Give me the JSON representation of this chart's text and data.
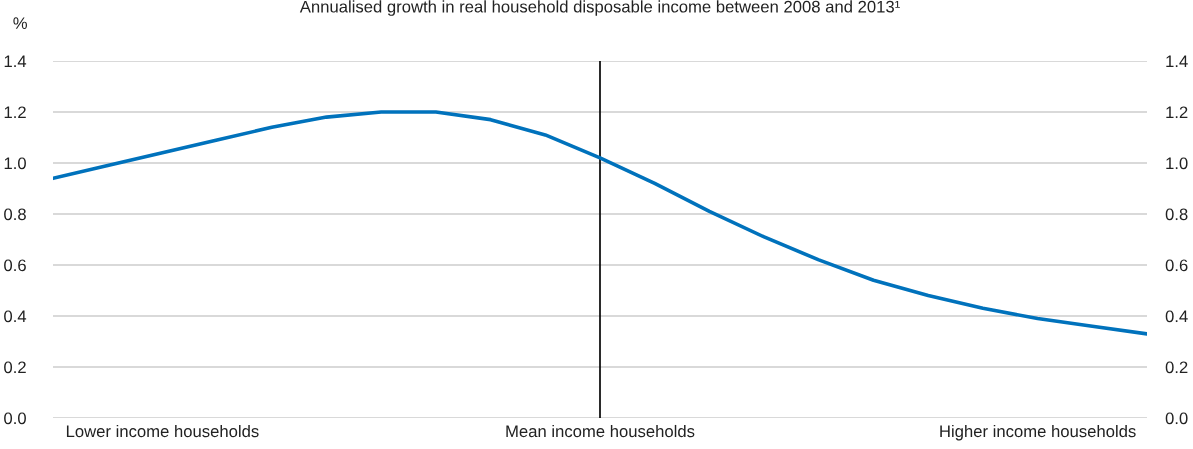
{
  "chart_data": {
    "type": "line",
    "title": "Annualised growth in real household disposable income between 2008 and 2013¹",
    "ylabel": "%",
    "categories": [
      null,
      null,
      "Lower income households",
      null,
      null,
      null,
      null,
      null,
      null,
      null,
      "Mean income households",
      null,
      null,
      null,
      null,
      null,
      null,
      null,
      "Higher income households",
      null,
      null
    ],
    "series": [
      {
        "color": "#0072bc",
        "values": [
          0.94,
          0.99,
          1.04,
          1.09,
          1.14,
          1.18,
          1.2,
          1.2,
          1.17,
          1.11,
          1.02,
          0.92,
          0.81,
          0.71,
          0.62,
          0.54,
          0.48,
          0.43,
          0.39,
          0.36,
          0.33
        ]
      }
    ],
    "ylim": [
      0,
      1.4
    ],
    "yticks": [
      {
        "value": 0,
        "label": "0.0"
      },
      0.2,
      0.4,
      0.6,
      0.8,
      {
        "value": 1,
        "label": "1.0"
      },
      1.2,
      1.4
    ],
    "y2lim": [
      0,
      1.4
    ],
    "y2ticks": [
      {
        "value": 0,
        "label": "0.0"
      },
      0.2,
      0.4,
      0.6,
      0.8,
      {
        "value": 1,
        "label": "1.0"
      },
      1.2,
      1.4
    ],
    "ref_lines": [
      {
        "axis": "x",
        "value": "Mean income households",
        "color": "#000000"
      }
    ],
    "grid": "y"
  }
}
